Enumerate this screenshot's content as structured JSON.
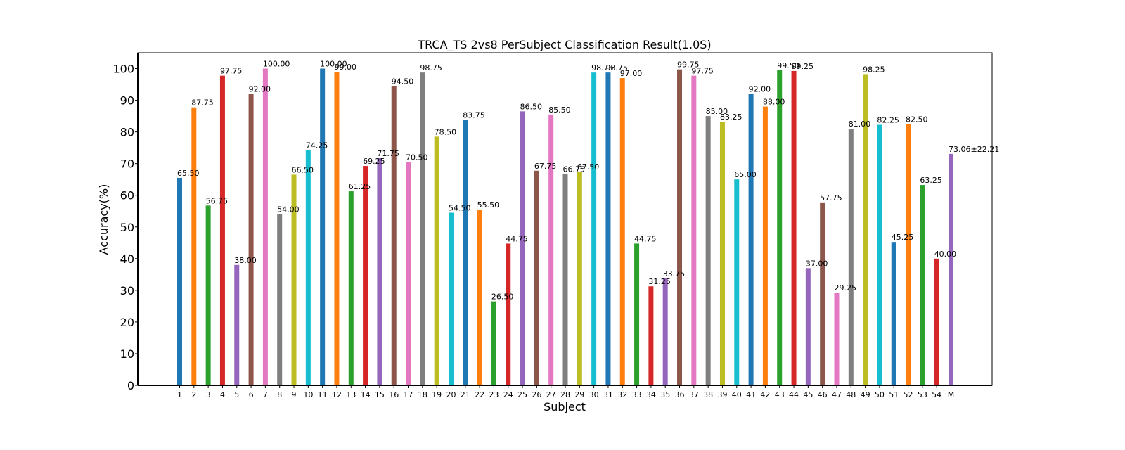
{
  "chart_data": {
    "type": "bar",
    "title": "TRCA_TS 2vs8 PerSubject Classification Result(1.0S)",
    "xlabel": "Subject",
    "ylabel": "Accuracy(%)",
    "ylim": [
      0,
      105
    ],
    "yticks": [
      0,
      10,
      20,
      30,
      40,
      50,
      60,
      70,
      80,
      90,
      100
    ],
    "grid": false,
    "categories": [
      "1",
      "2",
      "3",
      "4",
      "5",
      "6",
      "7",
      "8",
      "9",
      "10",
      "11",
      "12",
      "13",
      "14",
      "15",
      "16",
      "17",
      "18",
      "19",
      "20",
      "21",
      "22",
      "23",
      "24",
      "25",
      "26",
      "27",
      "28",
      "29",
      "30",
      "31",
      "32",
      "33",
      "34",
      "35",
      "36",
      "37",
      "38",
      "39",
      "40",
      "41",
      "42",
      "43",
      "44",
      "45",
      "46",
      "47",
      "48",
      "49",
      "50",
      "51",
      "52",
      "53",
      "54",
      "M"
    ],
    "values": [
      65.5,
      87.75,
      56.75,
      97.75,
      38.0,
      92.0,
      100.0,
      54.0,
      66.5,
      74.25,
      100.0,
      99.0,
      61.25,
      69.25,
      71.75,
      94.5,
      70.5,
      98.75,
      78.5,
      54.5,
      83.75,
      55.5,
      26.5,
      44.75,
      86.5,
      67.75,
      85.5,
      66.75,
      67.5,
      98.75,
      98.75,
      97.0,
      44.75,
      31.25,
      33.75,
      99.75,
      97.75,
      85.0,
      83.25,
      65.0,
      92.0,
      88.0,
      99.5,
      99.25,
      37.0,
      57.75,
      29.25,
      81.0,
      98.25,
      82.25,
      45.25,
      82.5,
      63.25,
      40.0,
      73.06
    ],
    "labels": [
      "65.50",
      "87.75",
      "56.75",
      "97.75",
      "38.00",
      "92.00",
      "100.00",
      "54.00",
      "66.50",
      "74.25",
      "100.00",
      "99.00",
      "61.25",
      "69.25",
      "71.75",
      "94.50",
      "70.50",
      "98.75",
      "78.50",
      "54.50",
      "83.75",
      "55.50",
      "26.50",
      "44.75",
      "86.50",
      "67.75",
      "85.50",
      "66.75",
      "67.50",
      "98.75",
      "98.75",
      "97.00",
      "44.75",
      "31.25",
      "33.75",
      "99.75",
      "97.75",
      "85.00",
      "83.25",
      "65.00",
      "92.00",
      "88.00",
      "99.50",
      "99.25",
      "37.00",
      "57.75",
      "29.25",
      "81.00",
      "98.25",
      "82.25",
      "45.25",
      "82.50",
      "63.25",
      "40.00",
      "73.06±22.21"
    ],
    "colors": [
      "#1f77b4",
      "#ff7f0e",
      "#2ca02c",
      "#d62728",
      "#9467bd",
      "#8c564b",
      "#e377c2",
      "#7f7f7f",
      "#bcbd22",
      "#17becf"
    ],
    "mean_label_color": "#ff0000"
  }
}
